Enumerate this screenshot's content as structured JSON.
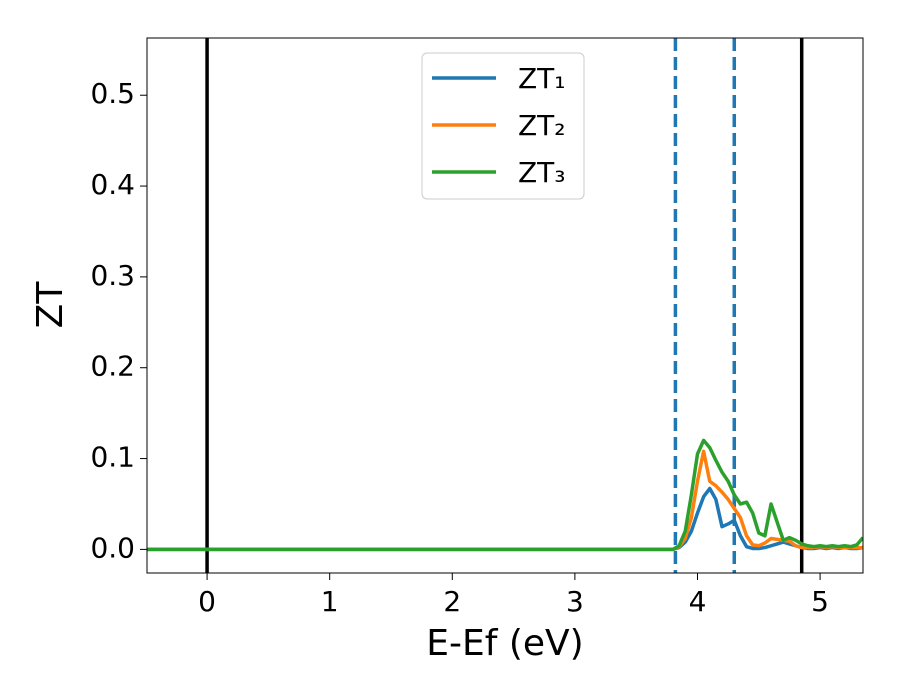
{
  "chart_data": {
    "type": "line",
    "x_label": "E-Ef (eV)",
    "y_label": "ZT",
    "xlim": [
      -0.49,
      5.35
    ],
    "ylim": [
      -0.026,
      0.563
    ],
    "xticks": [
      0,
      1,
      2,
      3,
      4,
      5
    ],
    "yticks": [
      {
        "value": 0,
        "label": "0.0"
      },
      {
        "value": 0.1,
        "label": "0.1"
      },
      {
        "value": 0.2,
        "label": "0.2"
      },
      {
        "value": 0.3,
        "label": "0.3"
      },
      {
        "value": 0.4,
        "label": "0.4"
      },
      {
        "value": 0.5,
        "label": "0.5"
      }
    ],
    "legend": "upper center",
    "vlines": [
      {
        "x": 0,
        "color": "#000000",
        "style": "solid"
      },
      {
        "x": 3.82,
        "color": "#1f77b4",
        "style": "dashed"
      },
      {
        "x": 4.3,
        "color": "#1f77b4",
        "style": "dashed"
      },
      {
        "x": 4.85,
        "color": "#000000",
        "style": "solid"
      }
    ],
    "x": [
      -0.49,
      3.7,
      3.8,
      3.85,
      3.9,
      3.95,
      4.0,
      4.05,
      4.1,
      4.15,
      4.2,
      4.25,
      4.3,
      4.35,
      4.4,
      4.45,
      4.5,
      4.55,
      4.6,
      4.65,
      4.7,
      4.75,
      4.8,
      4.85,
      4.9,
      4.95,
      5.0,
      5.05,
      5.1,
      5.15,
      5.2,
      5.25,
      5.3,
      5.35
    ],
    "series": [
      {
        "name": "ZT₁",
        "color": "#1f77b4",
        "values": [
          0,
          0,
          0,
          0.002,
          0.008,
          0.02,
          0.04,
          0.058,
          0.067,
          0.055,
          0.025,
          0.028,
          0.032,
          0.015,
          0.003,
          0.001,
          0.001,
          0.002,
          0.004,
          0.006,
          0.008,
          0.006,
          0.004,
          0.002,
          0.001,
          0.001,
          0.002,
          0.001,
          0.002,
          0.001,
          0.002,
          0.001,
          0.001,
          0.002
        ]
      },
      {
        "name": "ZT₂",
        "color": "#ff7f0e",
        "values": [
          0,
          0,
          0,
          0.003,
          0.012,
          0.035,
          0.075,
          0.108,
          0.075,
          0.07,
          0.063,
          0.055,
          0.045,
          0.035,
          0.015,
          0.005,
          0.004,
          0.007,
          0.012,
          0.011,
          0.01,
          0.009,
          0.004,
          0.002,
          0.002,
          0.002,
          0.003,
          0.002,
          0.003,
          0.002,
          0.002,
          0.002,
          0.002,
          0.002
        ]
      },
      {
        "name": "ZT₃",
        "color": "#2ca02c",
        "values": [
          0,
          0,
          0,
          0.004,
          0.02,
          0.06,
          0.105,
          0.12,
          0.112,
          0.098,
          0.085,
          0.075,
          0.06,
          0.05,
          0.052,
          0.04,
          0.018,
          0.015,
          0.05,
          0.03,
          0.01,
          0.013,
          0.01,
          0.006,
          0.004,
          0.003,
          0.004,
          0.003,
          0.004,
          0.003,
          0.004,
          0.003,
          0.005,
          0.013
        ]
      }
    ]
  }
}
